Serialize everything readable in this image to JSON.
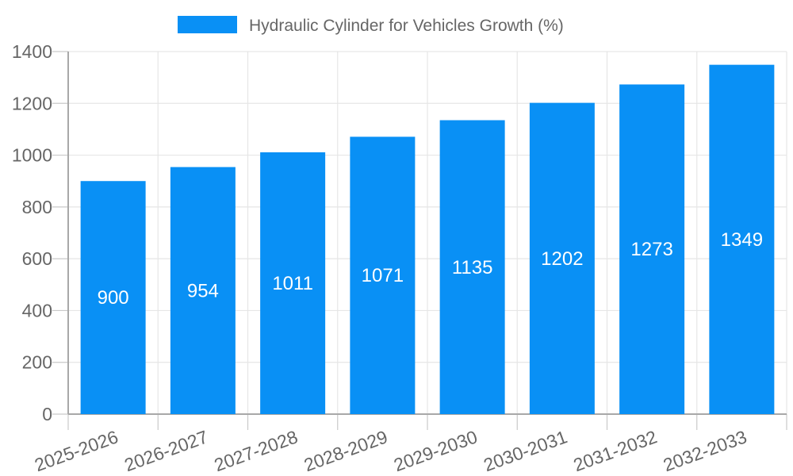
{
  "chart_data": {
    "type": "bar",
    "title": "Hydraulic Cylinder for Vehicles Growth (%)",
    "legend": {
      "label": "Hydraulic Cylinder for Vehicles Growth (%)",
      "position": "top"
    },
    "categories": [
      "2025-2026",
      "2026-2027",
      "2027-2028",
      "2028-2029",
      "2029-2030",
      "2030-2031",
      "2031-2032",
      "2032-2033"
    ],
    "series": [
      {
        "name": "Hydraulic Cylinder for Vehicles Growth (%)",
        "values": [
          900,
          954,
          1011,
          1071,
          1135,
          1202,
          1273,
          1349
        ]
      }
    ],
    "yticks": [
      0,
      200,
      400,
      600,
      800,
      1000,
      1200,
      1400
    ],
    "ylim": [
      0,
      1400
    ],
    "xlabel": "",
    "ylabel": "",
    "grid": true,
    "legend_position": "top",
    "bar_color": "#0990F5",
    "value_label_color": "#ffffff",
    "axis_label_color": "#666666",
    "gridline_color": "#e6e6e6"
  }
}
